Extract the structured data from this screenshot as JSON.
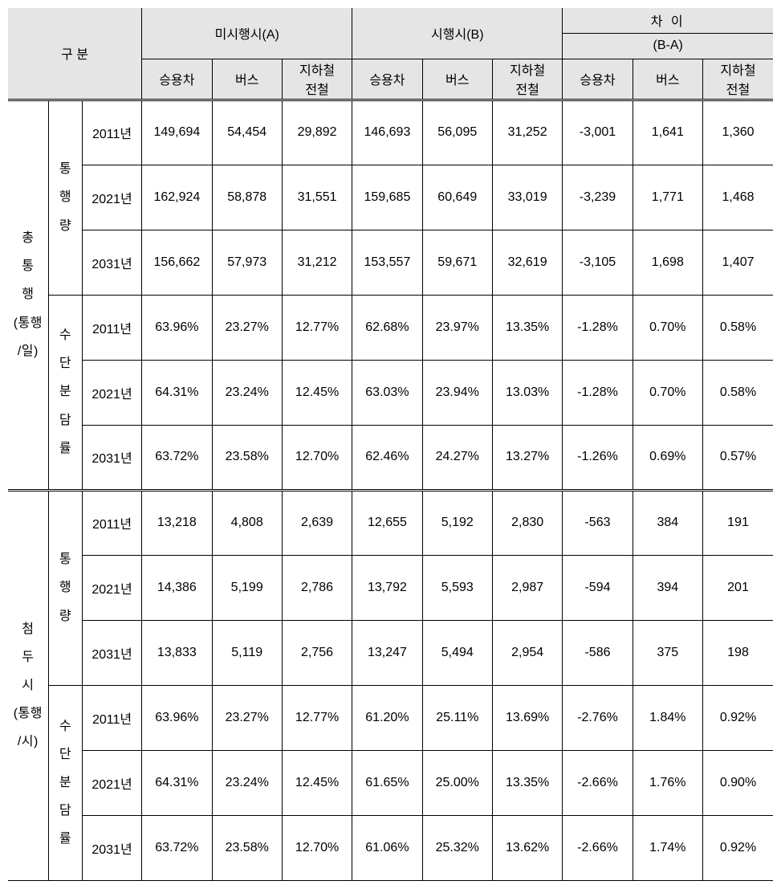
{
  "table": {
    "headers": {
      "category": "구 분",
      "groupA": "미시행시(A)",
      "groupB": "시행시(B)",
      "diff": "차 이",
      "diff_formula": "(B-A)",
      "col1": "승용차",
      "col2": "버스",
      "col3": "지하철\n전철"
    },
    "sections": [
      {
        "label1": "총\n통\n행\n(통행\n/일)",
        "subsections": [
          {
            "label2": "통\n행\n량",
            "rows": [
              {
                "year": "2011년",
                "a1": "149,694",
                "a2": "54,454",
                "a3": "29,892",
                "b1": "146,693",
                "b2": "56,095",
                "b3": "31,252",
                "d1": "-3,001",
                "d2": "1,641",
                "d3": "1,360"
              },
              {
                "year": "2021년",
                "a1": "162,924",
                "a2": "58,878",
                "a3": "31,551",
                "b1": "159,685",
                "b2": "60,649",
                "b3": "33,019",
                "d1": "-3,239",
                "d2": "1,771",
                "d3": "1,468"
              },
              {
                "year": "2031년",
                "a1": "156,662",
                "a2": "57,973",
                "a3": "31,212",
                "b1": "153,557",
                "b2": "59,671",
                "b3": "32,619",
                "d1": "-3,105",
                "d2": "1,698",
                "d3": "1,407"
              }
            ]
          },
          {
            "label2": "수\n단\n분\n담\n률",
            "rows": [
              {
                "year": "2011년",
                "a1": "63.96%",
                "a2": "23.27%",
                "a3": "12.77%",
                "b1": "62.68%",
                "b2": "23.97%",
                "b3": "13.35%",
                "d1": "-1.28%",
                "d2": "0.70%",
                "d3": "0.58%"
              },
              {
                "year": "2021년",
                "a1": "64.31%",
                "a2": "23.24%",
                "a3": "12.45%",
                "b1": "63.03%",
                "b2": "23.94%",
                "b3": "13.03%",
                "d1": "-1.28%",
                "d2": "0.70%",
                "d3": "0.58%"
              },
              {
                "year": "2031년",
                "a1": "63.72%",
                "a2": "23.58%",
                "a3": "12.70%",
                "b1": "62.46%",
                "b2": "24.27%",
                "b3": "13.27%",
                "d1": "-1.26%",
                "d2": "0.69%",
                "d3": "0.57%"
              }
            ]
          }
        ]
      },
      {
        "label1": "첨\n두\n시\n(통행\n/시)",
        "subsections": [
          {
            "label2": "통\n행\n량",
            "rows": [
              {
                "year": "2011년",
                "a1": "13,218",
                "a2": "4,808",
                "a3": "2,639",
                "b1": "12,655",
                "b2": "5,192",
                "b3": "2,830",
                "d1": "-563",
                "d2": "384",
                "d3": "191"
              },
              {
                "year": "2021년",
                "a1": "14,386",
                "a2": "5,199",
                "a3": "2,786",
                "b1": "13,792",
                "b2": "5,593",
                "b3": "2,987",
                "d1": "-594",
                "d2": "394",
                "d3": "201"
              },
              {
                "year": "2031년",
                "a1": "13,833",
                "a2": "5,119",
                "a3": "2,756",
                "b1": "13,247",
                "b2": "5,494",
                "b3": "2,954",
                "d1": "-586",
                "d2": "375",
                "d3": "198"
              }
            ]
          },
          {
            "label2": "수\n단\n분\n담\n률",
            "rows": [
              {
                "year": "2011년",
                "a1": "63.96%",
                "a2": "23.27%",
                "a3": "12.77%",
                "b1": "61.20%",
                "b2": "25.11%",
                "b3": "13.69%",
                "d1": "-2.76%",
                "d2": "1.84%",
                "d3": "0.92%"
              },
              {
                "year": "2021년",
                "a1": "64.31%",
                "a2": "23.24%",
                "a3": "12.45%",
                "b1": "61.65%",
                "b2": "25.00%",
                "b3": "13.35%",
                "d1": "-2.66%",
                "d2": "1.76%",
                "d3": "0.90%"
              },
              {
                "year": "2031년",
                "a1": "63.72%",
                "a2": "23.58%",
                "a3": "12.70%",
                "b1": "61.06%",
                "b2": "25.32%",
                "b3": "13.62%",
                "d1": "-2.66%",
                "d2": "1.74%",
                "d3": "0.92%"
              }
            ]
          }
        ]
      }
    ]
  }
}
